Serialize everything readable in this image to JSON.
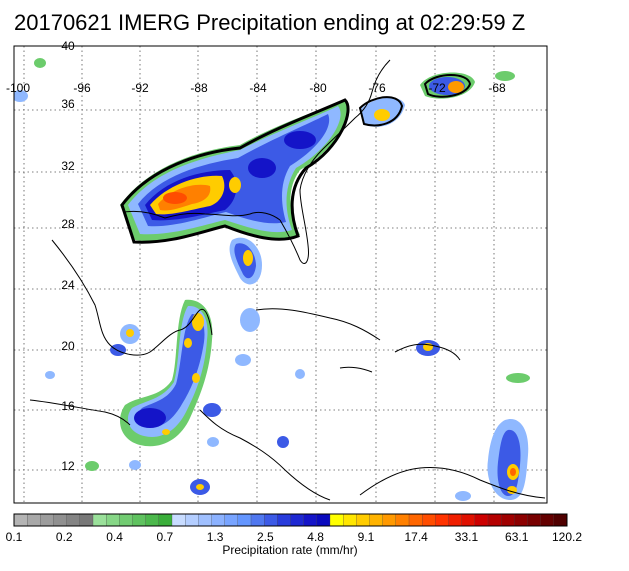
{
  "title": "20170621 IMERG Precipitation ending at 02:29:59 Z",
  "map": {
    "lon_labels": [
      "-100",
      "-96",
      "-92",
      "-88",
      "-84",
      "-80",
      "-76",
      "-72",
      "-68"
    ],
    "lat_labels": [
      "40",
      "36",
      "32",
      "28",
      "24",
      "20",
      "16",
      "12"
    ]
  },
  "colorbar": {
    "title": "Precipitation rate (mm/hr)",
    "tick_labels": [
      "0.1",
      "0.2",
      "0.4",
      "0.7",
      "1.3",
      "2.5",
      "4.8",
      "9.1",
      "17.4",
      "33.1",
      "63.1",
      "120.2"
    ],
    "colors": [
      "#b4b4b4",
      "#a8a8a8",
      "#9c9c9c",
      "#909090",
      "#848484",
      "#787878",
      "#9ae09a",
      "#86d686",
      "#72cc72",
      "#5fc25f",
      "#4cb84c",
      "#3aae3a",
      "#c8dcff",
      "#b4ceff",
      "#a0c0ff",
      "#8cb2ff",
      "#78a4ff",
      "#6496ff",
      "#5078f0",
      "#3c5ae6",
      "#283cdc",
      "#1e28d2",
      "#1414c8",
      "#0a0abe",
      "#ffff00",
      "#ffe600",
      "#ffcc00",
      "#ffb300",
      "#ff9900",
      "#ff8000",
      "#ff6600",
      "#ff4d00",
      "#ff3300",
      "#f01e00",
      "#e01000",
      "#cc0000",
      "#b40000",
      "#a00000",
      "#8c0000",
      "#780000",
      "#640000",
      "#500000"
    ]
  },
  "overlay_colors": {
    "outline": "#000000",
    "coastline": "#000000",
    "grid": "#555555",
    "ocean": "#ffffff"
  }
}
